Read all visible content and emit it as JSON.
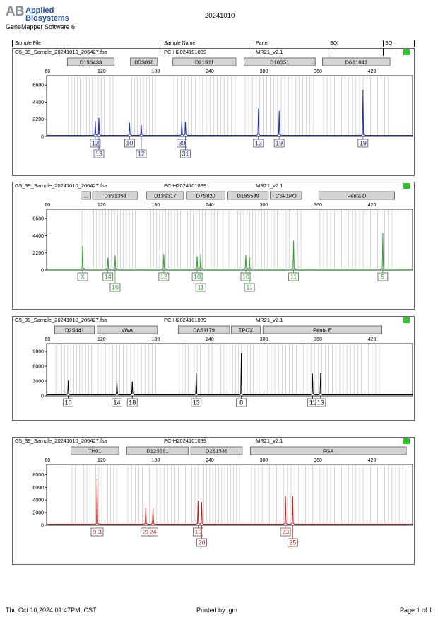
{
  "header": {
    "logo_mark": "AB",
    "logo_line1": "Applied",
    "logo_line2": "Biosystems",
    "software": "GeneMapper Software 6",
    "run_date": "20241010"
  },
  "columns": {
    "sample_file": "Sample File",
    "sample_name": "Sample Name",
    "panel": "Panel",
    "sqi": "SQI",
    "sq": "SQ"
  },
  "colors": {
    "blue": "#1f2db0",
    "green": "#2ea32e",
    "black": "#000000",
    "red": "#c51b1b",
    "sq": "#22cc22"
  },
  "axis": {
    "x_ticks": [
      60,
      120,
      180,
      240,
      300,
      360,
      420
    ],
    "xlim": [
      59,
      465
    ]
  },
  "chart_data": [
    {
      "type": "line",
      "dye": "blue",
      "sample_file": "G5_39_Sample_20241010_206427.fsa",
      "sample_name": "PC-H2024101039",
      "panel": "MR21_v2.1",
      "y_ticks": [
        0,
        2200,
        4400,
        6600
      ],
      "ylim": [
        0,
        7800
      ],
      "markers": [
        {
          "label": "D19S433",
          "start": 82,
          "end": 134
        },
        {
          "label": "D5S818",
          "start": 152,
          "end": 182
        },
        {
          "label": "D21S11",
          "start": 199,
          "end": 269
        },
        {
          "label": "D18S51",
          "start": 278,
          "end": 357
        },
        {
          "label": "D6S1043",
          "start": 365,
          "end": 440
        }
      ],
      "peaks": [
        {
          "x": 113,
          "h": 1900
        },
        {
          "x": 117,
          "h": 2300
        },
        {
          "x": 151,
          "h": 1700
        },
        {
          "x": 164,
          "h": 1400
        },
        {
          "x": 209,
          "h": 1900
        },
        {
          "x": 213,
          "h": 1800
        },
        {
          "x": 294,
          "h": 3500
        },
        {
          "x": 317,
          "h": 3200
        },
        {
          "x": 410,
          "h": 5900
        }
      ],
      "calls": [
        {
          "label": "12",
          "x": 113,
          "row": 1
        },
        {
          "label": "13",
          "x": 117,
          "row": 2
        },
        {
          "label": "10",
          "x": 151,
          "row": 1
        },
        {
          "label": "12",
          "x": 164,
          "row": 2
        },
        {
          "label": "30",
          "x": 209,
          "row": 1
        },
        {
          "label": "31",
          "x": 213,
          "row": 2
        },
        {
          "label": "13",
          "x": 294,
          "row": 1
        },
        {
          "label": "19",
          "x": 317,
          "row": 1
        },
        {
          "label": "19",
          "x": 410,
          "row": 1
        }
      ]
    },
    {
      "type": "line",
      "dye": "green",
      "sample_file": "G5_39_Sample_20241010_206427.fsa",
      "sample_name": "PC-H2024101039",
      "panel": "MR21_v2.1",
      "y_ticks": [
        0,
        2200,
        4400,
        6600
      ],
      "ylim": [
        0,
        7800
      ],
      "markers": [
        {
          "label": "...",
          "start": 97,
          "end": 108
        },
        {
          "label": "D3S1358",
          "start": 110,
          "end": 160
        },
        {
          "label": "D13S317",
          "start": 170,
          "end": 211
        },
        {
          "label": "D7S820",
          "start": 214,
          "end": 257
        },
        {
          "label": "D16S539",
          "start": 260,
          "end": 305
        },
        {
          "label": "CSF1PO",
          "start": 307,
          "end": 342
        },
        {
          "label": "Penta D",
          "start": 361,
          "end": 445
        }
      ],
      "peaks": [
        {
          "x": 99,
          "h": 3000
        },
        {
          "x": 127,
          "h": 1500
        },
        {
          "x": 135,
          "h": 1800
        },
        {
          "x": 189,
          "h": 2000
        },
        {
          "x": 226,
          "h": 1700
        },
        {
          "x": 230,
          "h": 2000
        },
        {
          "x": 280,
          "h": 1900
        },
        {
          "x": 284,
          "h": 1600
        },
        {
          "x": 333,
          "h": 3700
        },
        {
          "x": 432,
          "h": 4700
        }
      ],
      "calls": [
        {
          "label": "X",
          "x": 99,
          "row": 1
        },
        {
          "label": "14",
          "x": 127,
          "row": 1
        },
        {
          "label": "16",
          "x": 135,
          "row": 2
        },
        {
          "label": "12",
          "x": 189,
          "row": 1
        },
        {
          "label": "10",
          "x": 226,
          "row": 1
        },
        {
          "label": "11",
          "x": 230,
          "row": 2
        },
        {
          "label": "10",
          "x": 280,
          "row": 1
        },
        {
          "label": "11",
          "x": 284,
          "row": 2
        },
        {
          "label": "11",
          "x": 333,
          "row": 1
        },
        {
          "label": "9",
          "x": 432,
          "row": 1
        }
      ]
    },
    {
      "type": "line",
      "dye": "black",
      "sample_file": "G5_39_Sample_20241010_206427.fsa",
      "sample_name": "PC-H2024101039",
      "panel": "MR21_v2.1",
      "y_ticks": [
        0,
        3000,
        6000,
        9000
      ],
      "ylim": [
        0,
        10600
      ],
      "markers": [
        {
          "label": "D2S441",
          "start": 68,
          "end": 112
        },
        {
          "label": "vWA",
          "start": 115,
          "end": 182
        },
        {
          "label": "D8S1179",
          "start": 205,
          "end": 262
        },
        {
          "label": "TPOX",
          "start": 264,
          "end": 296
        },
        {
          "label": "Penta E",
          "start": 299,
          "end": 431
        }
      ],
      "peaks": [
        {
          "x": 83,
          "h": 3000
        },
        {
          "x": 137,
          "h": 3000
        },
        {
          "x": 154,
          "h": 2800
        },
        {
          "x": 225,
          "h": 4600
        },
        {
          "x": 275,
          "h": 8500
        },
        {
          "x": 354,
          "h": 4400
        },
        {
          "x": 363,
          "h": 4500
        }
      ],
      "calls": [
        {
          "label": "10",
          "x": 83,
          "row": 1
        },
        {
          "label": "14",
          "x": 137,
          "row": 1
        },
        {
          "label": "18",
          "x": 154,
          "row": 1
        },
        {
          "label": "13",
          "x": 225,
          "row": 1
        },
        {
          "label": "8",
          "x": 275,
          "row": 1
        },
        {
          "label": "11",
          "x": 354,
          "row": 1
        },
        {
          "label": "13",
          "x": 363,
          "row": 1
        }
      ]
    },
    {
      "type": "line",
      "dye": "red",
      "sample_file": "G5_39_Sample_20241010_206427.fsa",
      "sample_name": "PC-H2024101039",
      "panel": "MR21_v2.1",
      "y_ticks": [
        0,
        2000,
        4000,
        6000,
        8000
      ],
      "ylim": [
        0,
        9600
      ],
      "markers": [
        {
          "label": "TH01",
          "start": 86,
          "end": 139
        },
        {
          "label": "D12S391",
          "start": 148,
          "end": 216
        },
        {
          "label": "D2S1338",
          "start": 219,
          "end": 276
        },
        {
          "label": "FGA",
          "start": 285,
          "end": 458
        }
      ],
      "peaks": [
        {
          "x": 115,
          "h": 7300
        },
        {
          "x": 169,
          "h": 2700
        },
        {
          "x": 177,
          "h": 2700
        },
        {
          "x": 227,
          "h": 3800
        },
        {
          "x": 231,
          "h": 3600
        },
        {
          "x": 324,
          "h": 4500
        },
        {
          "x": 332,
          "h": 4500
        }
      ],
      "calls": [
        {
          "label": "9.3",
          "x": 115,
          "row": 1
        },
        {
          "label": "21",
          "x": 169,
          "row": 1
        },
        {
          "label": "24",
          "x": 177,
          "row": 1
        },
        {
          "label": "19",
          "x": 227,
          "row": 1
        },
        {
          "label": "20",
          "x": 231,
          "row": 2
        },
        {
          "label": "23",
          "x": 324,
          "row": 1
        },
        {
          "label": "25",
          "x": 332,
          "row": 2
        }
      ]
    }
  ],
  "footer": {
    "datetime": "Thu Oct 10,2024 01:47PM, CST",
    "printed_by": "Printed by: gm",
    "page": "Page 1 of 1"
  }
}
